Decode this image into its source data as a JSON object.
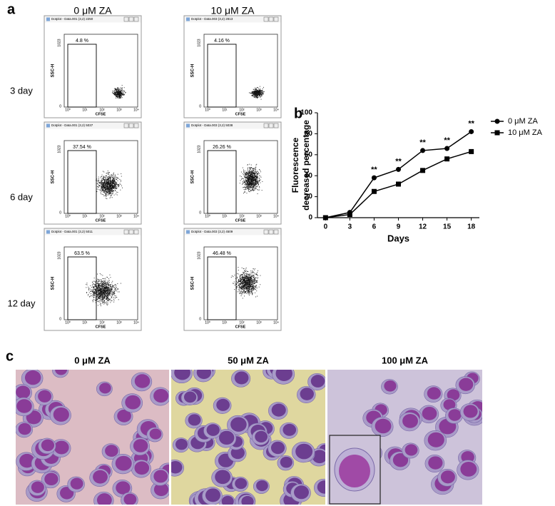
{
  "panel_a": {
    "label": "a",
    "columns": [
      "0 μM ZA",
      "10 μM ZA"
    ],
    "rows": [
      "3 day",
      "6 day",
      "12 day"
    ],
    "plots": [
      [
        {
          "window_title": "Dotplot - Data.001 (3,2) 2250",
          "gate": "4.8 %"
        },
        {
          "window_title": "Dotplot - Data.003 (3,2) 2813",
          "gate": "4.16 %"
        }
      ],
      [
        {
          "window_title": "Dotplot - Data.001 (3,2) 5037",
          "gate": "37.54 %"
        },
        {
          "window_title": "Dotplot - Data.003 (3,2) 5038",
          "gate": "26.26 %"
        }
      ],
      [
        {
          "window_title": "Dotplot - Data.001 (3,2) 5011",
          "gate": "63.5 %"
        },
        {
          "window_title": "Dotplot - Data.003 (3,2) 4509",
          "gate": "46.48 %"
        }
      ]
    ],
    "axis": {
      "x_label": "CFSE",
      "y_label": "SSC-H",
      "y_top": "1023",
      "y_bottom": "0",
      "x_ticks": [
        "10⁰",
        "10¹",
        "10²",
        "10³",
        "10⁴"
      ]
    }
  },
  "chart_data": {
    "type": "line",
    "label": "b",
    "xlabel": "Days",
    "ylabel": [
      "Fluorescence",
      "decreased percentage"
    ],
    "x": [
      0,
      3,
      6,
      9,
      12,
      15,
      18
    ],
    "series": [
      {
        "name": "0 μM ZA",
        "color": "#000000",
        "marker": "circle",
        "values": [
          0,
          5,
          38,
          46,
          64,
          66,
          82
        ]
      },
      {
        "name": "10 μM ZA",
        "color": "#000000",
        "marker": "square",
        "values": [
          0,
          3,
          25,
          32,
          45,
          56,
          63
        ]
      }
    ],
    "xlim": [
      -1,
      19
    ],
    "xticks": [
      0,
      3,
      6,
      9,
      12,
      15,
      18
    ],
    "ylim": [
      0,
      100
    ],
    "yticks": [
      0,
      20,
      40,
      60,
      80,
      100
    ],
    "annotations": [
      {
        "x": 6,
        "text": "**"
      },
      {
        "x": 9,
        "text": "**"
      },
      {
        "x": 12,
        "text": "**"
      },
      {
        "x": 15,
        "text": "**"
      },
      {
        "x": 18,
        "text": "**"
      }
    ],
    "legend": "upper right"
  },
  "panel_c": {
    "label": "c",
    "titles": [
      "0 μM ZA",
      "50 μM ZA",
      "100 μM ZA"
    ]
  }
}
